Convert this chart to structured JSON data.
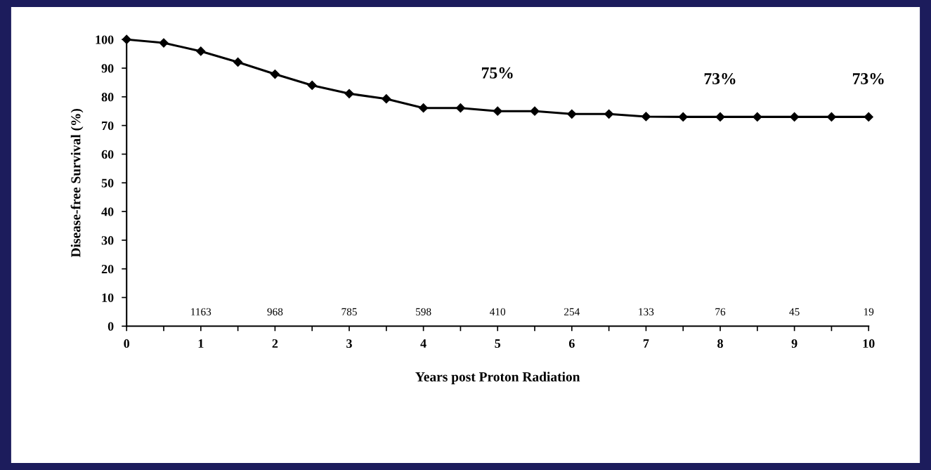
{
  "chart_data": {
    "type": "line",
    "xlabel": "Years post Proton Radiation",
    "ylabel": "Disease-free Survival (%)",
    "x": [
      0,
      0.5,
      1,
      1.5,
      2,
      2.5,
      3,
      3.5,
      4,
      4.5,
      5,
      5.5,
      6,
      6.5,
      7,
      7.5,
      8,
      8.5,
      9,
      9.5,
      10
    ],
    "series": [
      {
        "color": "#000000",
        "values": [
          100,
          98.8,
          95.9,
          92.1,
          87.9,
          84.0,
          81.1,
          79.3,
          76.1,
          76.1,
          75.0,
          75.0,
          74.0,
          74.0,
          73.1,
          73.0,
          73.0,
          73.0,
          73.0,
          73.0,
          73.0
        ]
      }
    ],
    "marker": "diamond",
    "line_style": "solid",
    "xlim": [
      0,
      10
    ],
    "ylim": [
      0,
      100
    ],
    "xticks": [
      0,
      {
        "value": 0.5,
        "label": null
      },
      1,
      {
        "value": 1.5,
        "label": null
      },
      2,
      {
        "value": 2.5,
        "label": null
      },
      3,
      {
        "value": 3.5,
        "label": null
      },
      4,
      {
        "value": 4.5,
        "label": null
      },
      5,
      {
        "value": 5.5,
        "label": null
      },
      6,
      {
        "value": 6.5,
        "label": null
      },
      7,
      {
        "value": 7.5,
        "label": null
      },
      8,
      {
        "value": 8.5,
        "label": null
      },
      9,
      {
        "value": 9.5,
        "label": null
      },
      10
    ],
    "yticks": [
      0,
      10,
      20,
      30,
      40,
      50,
      60,
      70,
      80,
      90,
      100
    ],
    "grid": false,
    "legend": false,
    "annotations": [
      {
        "text": "75%",
        "x": 5,
        "y": 75.0
      },
      {
        "text": "73%",
        "x": 8,
        "y": 73.0
      },
      {
        "text": "73%",
        "x": 10,
        "y": 73.0
      },
      "1163",
      "968",
      "785",
      "598",
      "410",
      "254",
      "133",
      "76",
      "45",
      "19"
    ]
  }
}
